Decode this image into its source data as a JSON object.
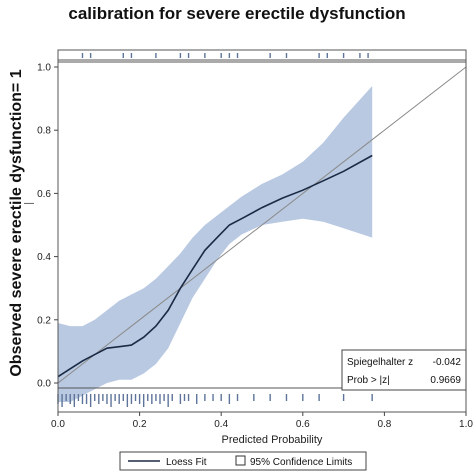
{
  "chart_data": {
    "type": "line",
    "title": "calibration for severe erectile dysfunction",
    "xlabel": "Predicted Probability",
    "ylabel": "Observed severe erectile dysfunction= 1",
    "xlim": [
      0,
      1.0
    ],
    "ylim": [
      -0.07,
      1.1
    ],
    "x_ticks": [
      "0.0",
      "0.2",
      "0.4",
      "0.6",
      "0.8",
      "1.0"
    ],
    "x_tick_values": [
      0,
      0.2,
      0.4,
      0.6,
      0.8,
      1.0
    ],
    "y_ticks": [
      "0.0",
      "0.2",
      "0.4",
      "0.6",
      "0.8",
      "1.0"
    ],
    "y_tick_values": [
      0,
      0.2,
      0.4,
      0.6,
      0.8,
      1.0
    ],
    "grid": false,
    "legend_position": "bottom",
    "legend": [
      {
        "label": "Loess Fit",
        "kind": "line"
      },
      {
        "label": "95% Confidence Limits",
        "kind": "box"
      }
    ],
    "colors": {
      "band": "#b9c9e2",
      "fit": "#1b2a44",
      "reference": "#8a8a8a",
      "rug": "#5d7399"
    },
    "reference_line": {
      "x": [
        0,
        1.0
      ],
      "y": [
        0,
        1.0
      ]
    },
    "series": [
      {
        "name": "Loess Fit",
        "x": [
          0,
          0.03,
          0.06,
          0.09,
          0.12,
          0.15,
          0.18,
          0.21,
          0.24,
          0.27,
          0.3,
          0.33,
          0.36,
          0.39,
          0.42,
          0.45,
          0.5,
          0.55,
          0.6,
          0.65,
          0.7,
          0.77
        ],
        "y": [
          0.02,
          0.045,
          0.07,
          0.09,
          0.11,
          0.115,
          0.12,
          0.145,
          0.18,
          0.23,
          0.3,
          0.36,
          0.42,
          0.46,
          0.5,
          0.52,
          0.555,
          0.585,
          0.61,
          0.64,
          0.67,
          0.72
        ]
      }
    ],
    "confidence_band": {
      "x": [
        0,
        0.03,
        0.06,
        0.09,
        0.12,
        0.15,
        0.18,
        0.21,
        0.24,
        0.27,
        0.3,
        0.33,
        0.36,
        0.39,
        0.42,
        0.45,
        0.5,
        0.55,
        0.6,
        0.65,
        0.7,
        0.77
      ],
      "upper": [
        0.19,
        0.18,
        0.18,
        0.2,
        0.23,
        0.26,
        0.28,
        0.3,
        0.33,
        0.37,
        0.41,
        0.46,
        0.5,
        0.53,
        0.56,
        0.59,
        0.63,
        0.66,
        0.7,
        0.76,
        0.84,
        0.94
      ],
      "lower": [
        -0.06,
        -0.06,
        -0.04,
        -0.02,
        0.0,
        0.01,
        0.01,
        0.03,
        0.06,
        0.11,
        0.19,
        0.27,
        0.33,
        0.39,
        0.44,
        0.47,
        0.5,
        0.51,
        0.52,
        0.51,
        0.49,
        0.46
      ]
    },
    "rug_top_x": [
      0.06,
      0.08,
      0.16,
      0.18,
      0.24,
      0.3,
      0.32,
      0.36,
      0.4,
      0.42,
      0.44,
      0.52,
      0.56,
      0.64,
      0.66,
      0.7,
      0.74,
      0.76
    ],
    "rug_bottom_x": [
      0.0,
      0.01,
      0.02,
      0.03,
      0.04,
      0.05,
      0.06,
      0.07,
      0.08,
      0.09,
      0.1,
      0.11,
      0.12,
      0.13,
      0.14,
      0.15,
      0.16,
      0.17,
      0.18,
      0.19,
      0.2,
      0.21,
      0.22,
      0.23,
      0.24,
      0.25,
      0.26,
      0.27,
      0.28,
      0.3,
      0.31,
      0.32,
      0.34,
      0.36,
      0.38,
      0.4,
      0.42,
      0.44,
      0.48,
      0.52,
      0.56,
      0.6,
      0.64,
      0.7,
      0.77
    ],
    "rug_bottom_len": [
      2,
      3,
      1,
      2,
      3,
      1,
      2,
      2,
      3,
      1,
      2,
      1,
      2,
      3,
      1,
      2,
      1,
      3,
      2,
      1,
      2,
      3,
      1,
      2,
      1,
      2,
      1,
      3,
      1,
      2,
      1,
      1,
      2,
      1,
      1,
      1,
      2,
      1,
      1,
      1,
      1,
      1,
      1,
      1,
      1
    ]
  },
  "stats": {
    "spiegelhalter_label": "Spiegelhalter z",
    "spiegelhalter_value": "-0.042",
    "prob_label": "Prob > |z|",
    "prob_value": "0.9669"
  },
  "marker_dash": "—"
}
